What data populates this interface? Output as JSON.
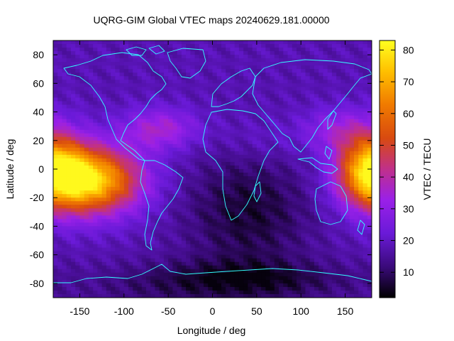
{
  "chart_data": {
    "type": "heatmap",
    "title": "UQRG-GIM Global VTEC maps 20240629.181.00000",
    "xlabel": "Longitude / deg",
    "ylabel": "Latitude / deg",
    "colorbar_label": "VTEC / TECU",
    "xlim": [
      -180,
      180
    ],
    "ylim": [
      -90,
      90
    ],
    "x_ticks": [
      -150,
      -100,
      -50,
      0,
      50,
      100,
      150
    ],
    "y_ticks": [
      -80,
      -60,
      -40,
      -20,
      0,
      20,
      40,
      60,
      80
    ],
    "colorbar_range": [
      2,
      83
    ],
    "colorbar_ticks": [
      10,
      20,
      30,
      40,
      50,
      60,
      70,
      80
    ],
    "colormap": "gnuplot-pm3d-black-purple-red-orange-yellow",
    "coastline_color": "#33ffff",
    "grid": false,
    "peaks_vtec": [
      {
        "lon": -147,
        "lat": -12,
        "value": 82
      },
      {
        "lon": 178,
        "lat": 0,
        "value": 68
      },
      {
        "lon": -55,
        "lat": 28,
        "value": 40
      }
    ],
    "minimum_vtec": {
      "lon": 40,
      "lat": -78,
      "value": 3
    }
  }
}
